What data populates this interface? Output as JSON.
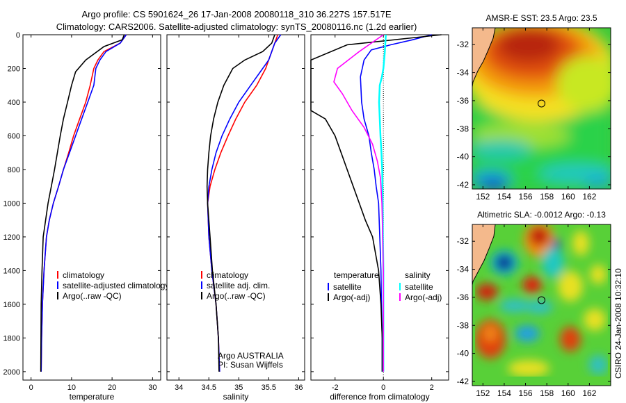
{
  "header": {
    "line1": "Argo profile: CS 5901624_26 17-Jan-2008 20080118_310 36.227S 157.517E",
    "line2": "Climatology: CARS2006. Satellite-adjusted climatology: synTS_20080116.nc (1.2d earlier)"
  },
  "side_label": "CSIRO 24-Jan-2008 10:32:10",
  "colors": {
    "climatology": "#ff0000",
    "satellite": "#0000ff",
    "argo": "#000000",
    "sal_satellite": "#00ffff",
    "sal_argo": "#ff00ff",
    "land": "#f4b98c"
  },
  "chart_data": [
    {
      "type": "line",
      "name": "temperature-profile",
      "xlabel": "temperature",
      "xlim": [
        -2,
        32
      ],
      "xticks": [
        "0",
        "10",
        "20",
        "30"
      ],
      "xtick_values": [
        0,
        10,
        20,
        30
      ],
      "ylim": [
        0,
        2050
      ],
      "yticks": [
        "0",
        "200",
        "400",
        "600",
        "800",
        "1000",
        "1200",
        "1400",
        "1600",
        "1800",
        "2000"
      ],
      "ytick_values": [
        0,
        200,
        400,
        600,
        800,
        1000,
        1200,
        1400,
        1600,
        1800,
        2000
      ],
      "legend": [
        "climatology",
        "satellite-adjusted climatology",
        "Argo(..raw -QC)"
      ],
      "series": [
        {
          "key": "climatology",
          "x": [
            23.5,
            22,
            18,
            16.5,
            15.5,
            14.6,
            13.5,
            12,
            10.5,
            9.3,
            8,
            6.8,
            5.5,
            4.5,
            3.8,
            3.2,
            2.8,
            2.6,
            2.5
          ],
          "y": [
            0,
            50,
            100,
            150,
            200,
            300,
            400,
            500,
            600,
            700,
            800,
            900,
            1000,
            1100,
            1200,
            1400,
            1600,
            1800,
            2000
          ]
        },
        {
          "key": "satellite",
          "x": [
            23.5,
            22,
            18.5,
            17,
            16,
            15.5,
            14,
            12.5,
            11,
            9.5,
            8,
            6.8,
            5.5,
            4.5,
            3.8,
            3.2,
            2.8,
            2.6,
            2.5
          ],
          "y": [
            0,
            50,
            100,
            150,
            200,
            300,
            400,
            500,
            600,
            700,
            800,
            900,
            1000,
            1100,
            1200,
            1400,
            1600,
            1800,
            2000
          ]
        },
        {
          "key": "argo",
          "x": [
            23,
            22.5,
            18,
            13.5,
            11,
            10,
            9,
            8,
            7.2,
            6.5,
            5.8,
            5,
            4.2,
            3.6,
            3,
            2.7,
            2.5,
            2.4
          ],
          "y": [
            0,
            30,
            70,
            150,
            220,
            300,
            400,
            500,
            600,
            700,
            800,
            900,
            1000,
            1100,
            1200,
            1400,
            1600,
            2000
          ]
        }
      ]
    },
    {
      "type": "line",
      "name": "salinity-profile",
      "xlabel": "salinity",
      "xlim": [
        33.8,
        36.1
      ],
      "xticks": [
        "34",
        "34.5",
        "35",
        "35.5",
        "36"
      ],
      "xtick_values": [
        34,
        34.5,
        35,
        35.5,
        36
      ],
      "ylim": [
        0,
        2050
      ],
      "legend": [
        "climatology",
        "satellite adj. clim.",
        "Argo(..raw -QC)"
      ],
      "annotation": [
        "Argo AUSTRALIA",
        "PI: Susan Wijffels"
      ],
      "series": [
        {
          "key": "climatology",
          "x": [
            35.65,
            35.6,
            35.55,
            35.5,
            35.45,
            35.3,
            35.1,
            34.95,
            34.82,
            34.7,
            34.6,
            34.52,
            34.48,
            34.5,
            34.55,
            34.62,
            34.66,
            34.68
          ],
          "y": [
            0,
            50,
            100,
            150,
            200,
            300,
            400,
            500,
            600,
            700,
            800,
            900,
            1000,
            1200,
            1400,
            1600,
            1800,
            2000
          ]
        },
        {
          "key": "satellite",
          "x": [
            35.7,
            35.6,
            35.55,
            35.5,
            35.4,
            35.2,
            35.0,
            34.85,
            34.72,
            34.62,
            34.55,
            34.5,
            34.48,
            34.5,
            34.55,
            34.62,
            34.66,
            34.68
          ],
          "y": [
            0,
            50,
            100,
            150,
            200,
            300,
            400,
            500,
            600,
            700,
            800,
            900,
            1000,
            1200,
            1400,
            1600,
            1800,
            2000
          ]
        },
        {
          "key": "argo",
          "x": [
            35.6,
            35.55,
            35.4,
            35.1,
            34.9,
            34.75,
            34.65,
            34.58,
            34.53,
            34.5,
            34.48,
            34.47,
            34.48,
            34.52,
            34.56,
            34.62,
            34.66,
            34.67
          ],
          "y": [
            0,
            50,
            100,
            150,
            200,
            300,
            400,
            500,
            600,
            700,
            800,
            900,
            1000,
            1200,
            1400,
            1600,
            1800,
            2000
          ]
        }
      ]
    },
    {
      "type": "line",
      "name": "difference-profile",
      "xlabel": "difference from climatology",
      "xlim": [
        -3,
        2.7
      ],
      "xticks": [
        "-2",
        "0",
        "2"
      ],
      "xtick_values": [
        -2,
        0,
        2
      ],
      "ylim": [
        0,
        2050
      ],
      "legend_titles": [
        "temperature",
        "salinity"
      ],
      "legend": [
        "satellite",
        "Argo(-adj)",
        "satellite",
        "Argo(-adj)"
      ],
      "series": [
        {
          "key": "temp_satellite",
          "x": [
            2,
            1.2,
            0.3,
            -0.5,
            -0.8,
            -0.95,
            -0.9,
            -0.8,
            -0.6,
            -0.5,
            -0.38,
            -0.3,
            -0.2,
            -0.15,
            -0.1,
            -0.08,
            -0.05,
            -0.05
          ],
          "y": [
            0,
            30,
            60,
            90,
            150,
            250,
            400,
            500,
            600,
            700,
            800,
            900,
            1000,
            1200,
            1400,
            1600,
            1800,
            2000
          ]
        },
        {
          "key": "temp_argo",
          "x": [
            2.4,
            -1.5,
            -3.0,
            -3.0,
            -2.4,
            -2.0,
            -1.75,
            -1.5,
            -1.25,
            -1.0,
            -0.75,
            -0.45,
            -0.2,
            -0.1,
            -0.05,
            -0.05
          ],
          "y": [
            0,
            60,
            150,
            450,
            500,
            600,
            700,
            800,
            900,
            1000,
            1100,
            1200,
            1400,
            1600,
            1800,
            2000
          ]
        },
        {
          "key": "sal_satellite",
          "x": [
            0.1,
            0.06,
            0.0,
            -0.06,
            -0.15,
            -0.18,
            -0.15,
            -0.12,
            -0.08,
            -0.05,
            -0.03,
            -0.02,
            0.0,
            0.0,
            0.0
          ],
          "y": [
            0,
            100,
            200,
            250,
            300,
            400,
            500,
            600,
            700,
            800,
            1000,
            1200,
            1400,
            1700,
            2000
          ]
        },
        {
          "key": "sal_argo",
          "x": [
            0.0,
            -1.0,
            -1.9,
            -2.05,
            -1.7,
            -1.3,
            -0.8,
            -0.45,
            -0.25,
            -0.12,
            -0.06,
            -0.03,
            0.0,
            0.0,
            0.0
          ],
          "y": [
            0,
            100,
            200,
            280,
            350,
            450,
            550,
            650,
            750,
            850,
            1000,
            1200,
            1400,
            1700,
            2000
          ]
        }
      ]
    },
    {
      "type": "heatmap",
      "name": "sst-map",
      "title": "AMSR-E SST: 23.5 Argo: 23.5",
      "xlim": [
        151,
        164
      ],
      "ylim": [
        -42.3,
        -30.8
      ],
      "xticks": [
        "152",
        "154",
        "156",
        "158",
        "160",
        "162"
      ],
      "xtick_values": [
        152,
        154,
        156,
        158,
        160,
        162
      ],
      "yticks": [
        "-32",
        "-34",
        "-36",
        "-38",
        "-40",
        "-42"
      ],
      "ytick_values": [
        -32,
        -34,
        -36,
        -38,
        -40,
        -42
      ],
      "marker": {
        "lon": 157.5,
        "lat": -36.2
      }
    },
    {
      "type": "heatmap",
      "name": "sla-map",
      "title": "Altimetric SLA: -0.0012 Argo: -0.13",
      "xlim": [
        151,
        164
      ],
      "ylim": [
        -42.3,
        -30.8
      ],
      "xticks": [
        "152",
        "154",
        "156",
        "158",
        "160",
        "162"
      ],
      "xtick_values": [
        152,
        154,
        156,
        158,
        160,
        162
      ],
      "yticks": [
        "-32",
        "-34",
        "-36",
        "-38",
        "-40",
        "-42"
      ],
      "ytick_values": [
        -32,
        -34,
        -36,
        -38,
        -40,
        -42
      ],
      "marker": {
        "lon": 157.5,
        "lat": -36.2
      }
    }
  ]
}
